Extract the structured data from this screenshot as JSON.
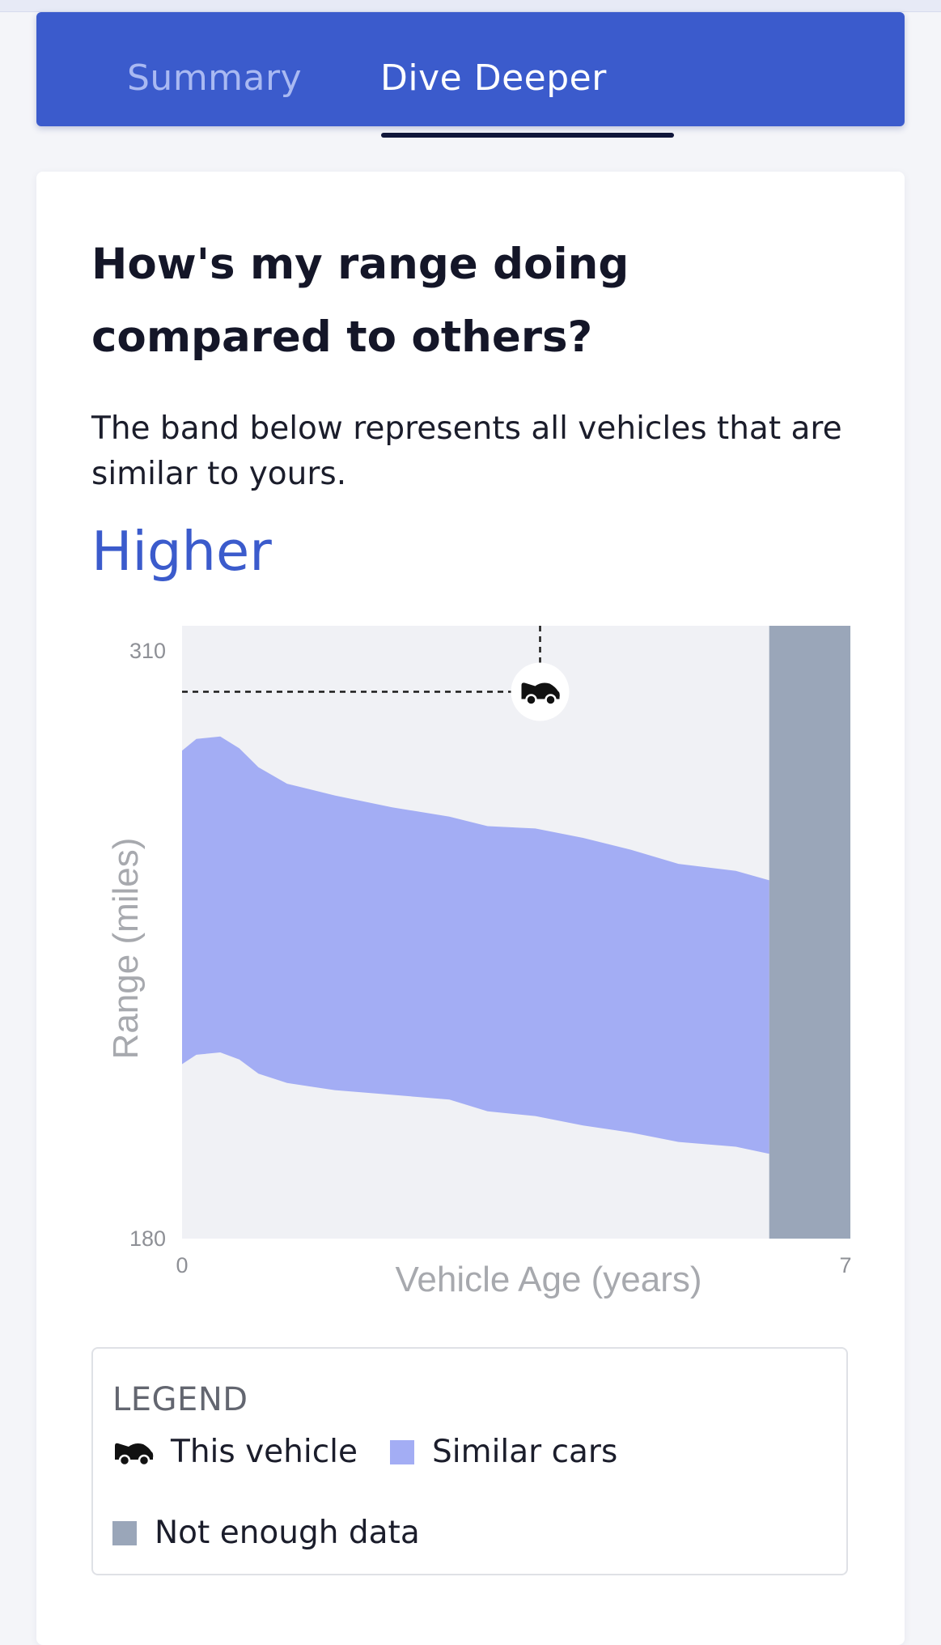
{
  "tabs": [
    {
      "label": "Summary",
      "active": false
    },
    {
      "label": "Dive Deeper",
      "active": true
    }
  ],
  "card": {
    "title": "How's my range doing compared to others?",
    "description": "The band below represents all vehicles that are similar to yours.",
    "verdict": "Higher"
  },
  "colors": {
    "brand": "#3b5bcc",
    "band": "#a3adf4",
    "no_data": "#9aa6b9",
    "plot_bg": "#f0f1f5"
  },
  "chart_data": {
    "type": "area",
    "xlabel": "Vehicle Age (years)",
    "ylabel": "Range (miles)",
    "xlim": [
      0,
      7
    ],
    "ylim": [
      180,
      310
    ],
    "x_tick_labels": [
      "0",
      "7"
    ],
    "y_tick_labels": [
      "310",
      "180"
    ],
    "series": [
      {
        "name": "Similar cars",
        "x": [
          0,
          0.15,
          0.4,
          0.6,
          0.8,
          1.1,
          1.6,
          2.2,
          2.8,
          3.2,
          3.7,
          4.2,
          4.7,
          5.2,
          5.8,
          6.15
        ],
        "upper": [
          283.5,
          286,
          286.5,
          284,
          280,
          276.5,
          274,
          271.5,
          269.5,
          267.5,
          267,
          265,
          262.5,
          259.5,
          258,
          256
        ],
        "lower": [
          217,
          219,
          219.5,
          218,
          215,
          213,
          211.5,
          210.5,
          209.5,
          207,
          206,
          204,
          202.5,
          200.5,
          199.5,
          198
        ]
      }
    ],
    "this_vehicle": {
      "label": "This vehicle",
      "x": 3.75,
      "y": 296
    },
    "not_enough_data_from": 6.15,
    "legend": {
      "title": "LEGEND",
      "items": [
        "This vehicle",
        "Similar cars",
        "Not enough data"
      ]
    }
  }
}
